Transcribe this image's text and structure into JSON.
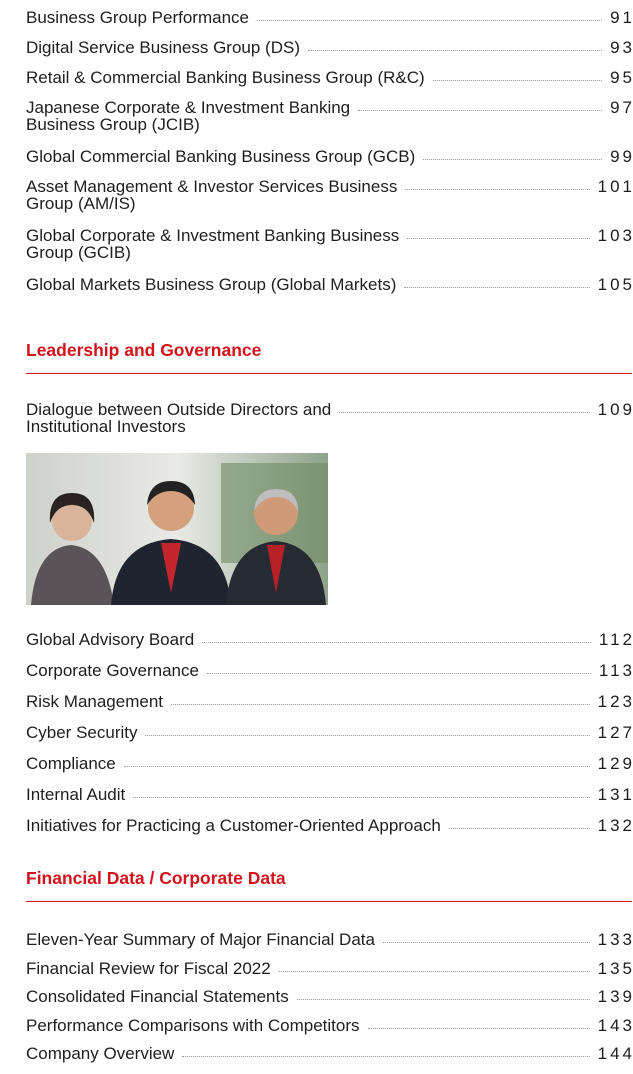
{
  "business_groups": [
    {
      "title": "Business Group Performance",
      "page": 91
    },
    {
      "title": "Digital Service Business Group (DS)",
      "page": 93
    },
    {
      "title": "Retail & Commercial Banking Business Group (R&C)",
      "page": 95
    },
    {
      "title": "Japanese Corporate & Investment Banking\nBusiness Group (JCIB)",
      "page": 97
    },
    {
      "title": "Global Commercial Banking Business Group (GCB)",
      "page": 99
    },
    {
      "title": "Asset Management & Investor Services Business\nGroup (AM/IS)",
      "page": 101
    },
    {
      "title": "Global Corporate & Investment Banking Business\nGroup (GCIB)",
      "page": 103
    },
    {
      "title": "Global Markets Business Group (Global Markets)",
      "page": 105
    }
  ],
  "sections": [
    {
      "heading": "Leadership and Governance",
      "feature": {
        "title": "Dialogue between Outside Directors and\nInstitutional Investors",
        "page": 109
      },
      "entries": [
        {
          "title": "Global Advisory Board",
          "page": 112
        },
        {
          "title": "Corporate Governance",
          "page": 113
        },
        {
          "title": "Risk Management",
          "page": 123
        },
        {
          "title": "Cyber Security",
          "page": 127
        },
        {
          "title": "Compliance",
          "page": 129
        },
        {
          "title": "Internal Audit",
          "page": 131
        },
        {
          "title": "Initiatives for Practicing a Customer-Oriented Approach",
          "page": 132
        }
      ]
    },
    {
      "heading": "Financial Data / Corporate Data",
      "entries": [
        {
          "title": "Eleven-Year Summary of Major Financial Data",
          "page": 133
        },
        {
          "title": "Financial Review for Fiscal 2022",
          "page": 135
        },
        {
          "title": "Consolidated Financial Statements",
          "page": 139
        },
        {
          "title": "Performance Comparisons with Competitors",
          "page": 143
        },
        {
          "title": "Company Overview",
          "page": 144
        }
      ]
    }
  ]
}
